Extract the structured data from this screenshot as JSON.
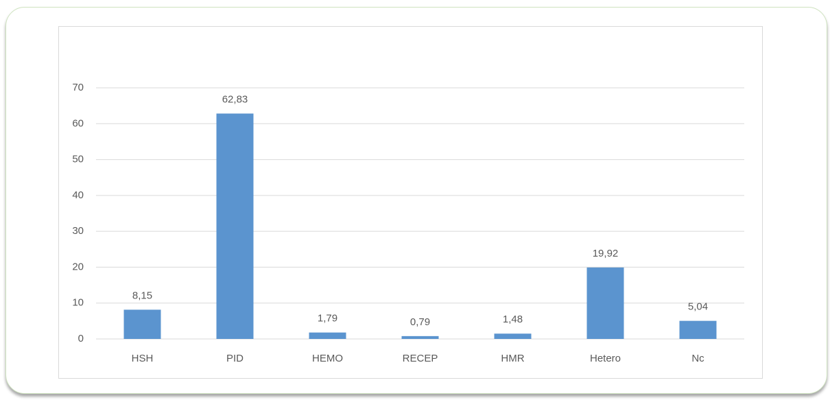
{
  "chart_data": {
    "type": "bar",
    "categories": [
      "HSH",
      "PID",
      "HEMO",
      "RECEP",
      "HMR",
      "Hetero",
      "Nc"
    ],
    "values": [
      8.15,
      62.83,
      1.79,
      0.79,
      1.48,
      19.92,
      5.04
    ],
    "value_labels": [
      "8,15",
      "62,83",
      "1,79",
      "0,79",
      "1,48",
      "19,92",
      "5,04"
    ],
    "color": "#5b94cf",
    "ylim": [
      0,
      70
    ],
    "yticks": [
      0,
      10,
      20,
      30,
      40,
      50,
      60,
      70
    ],
    "grid": true
  }
}
